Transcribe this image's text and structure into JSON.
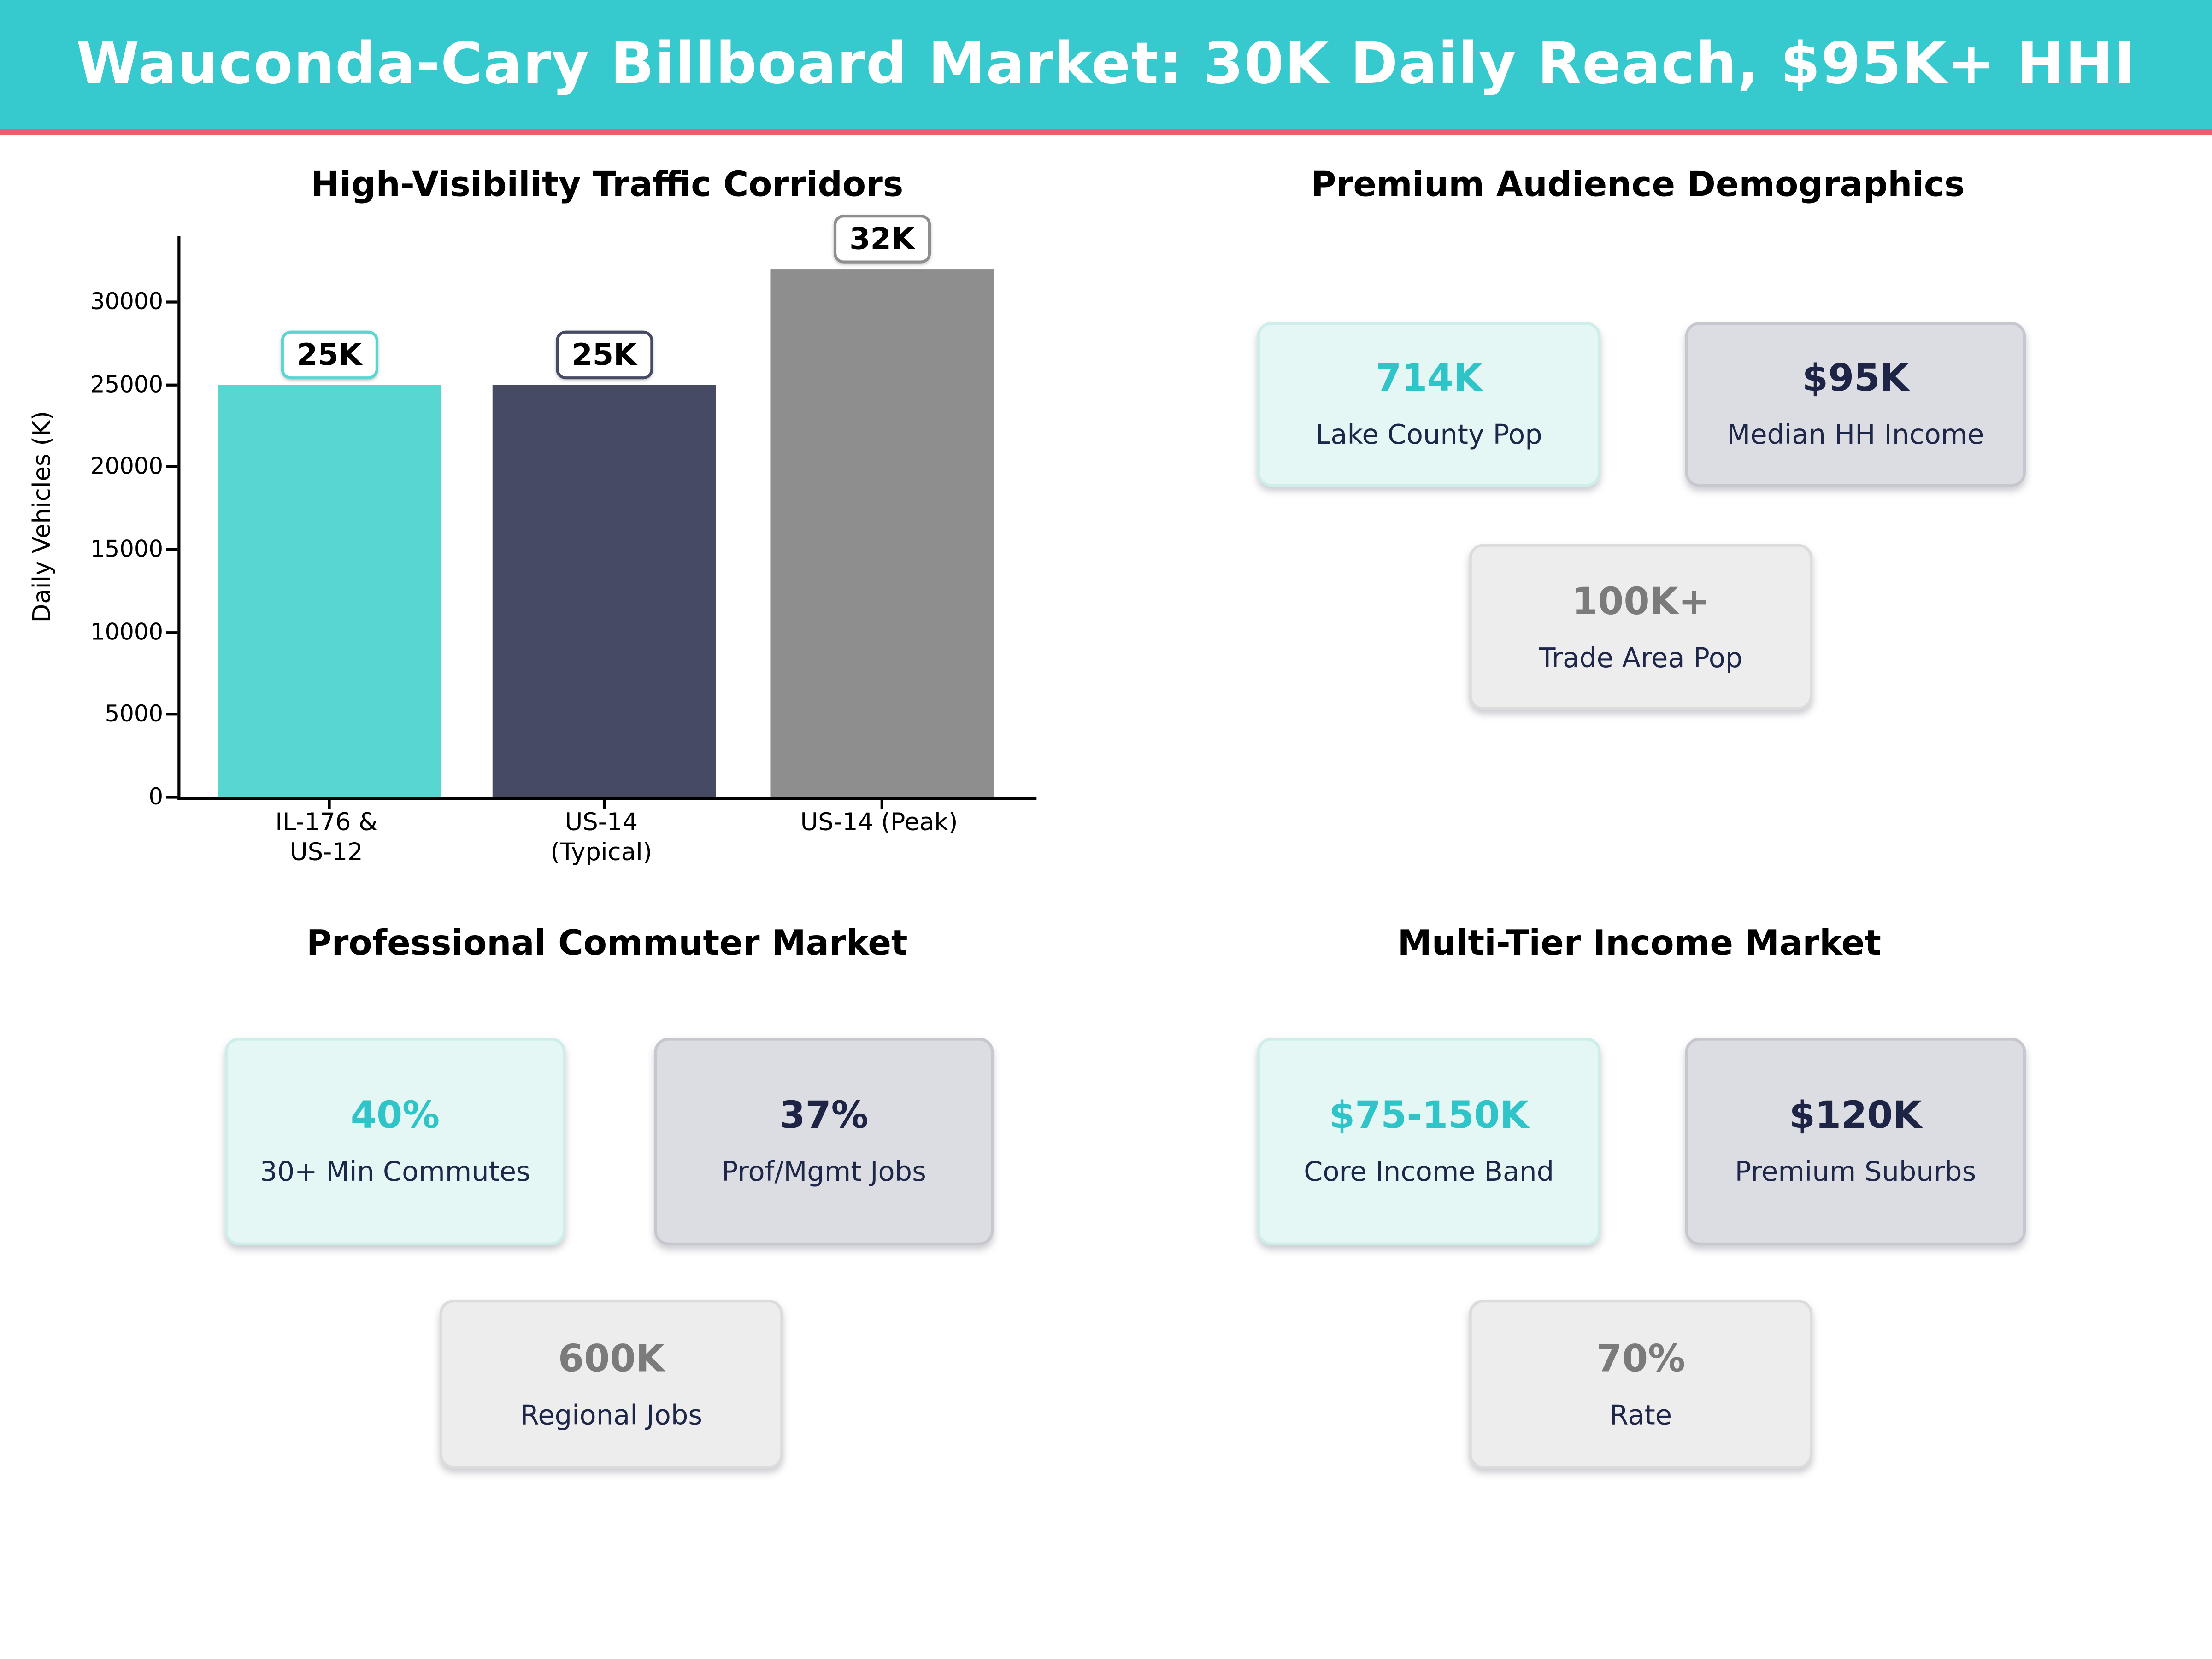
{
  "header": {
    "title": "Wauconda-Cary Billboard Market: 30K Daily Reach, $95K+ HHI",
    "bg_color": "#36c9cd",
    "accent_strip_color": "#ea5d72"
  },
  "chart_data": {
    "type": "bar",
    "title": "High-Visibility Traffic Corridors",
    "categories": [
      "IL-176 &\nUS-12",
      "US-14\n(Typical)",
      "US-14 (Peak)"
    ],
    "values": [
      25000,
      25000,
      32000
    ],
    "bar_labels": [
      "25K",
      "25K",
      "32K"
    ],
    "bar_colors": [
      "#58d6d2",
      "#464a62",
      "#8e8e8e"
    ],
    "xlabel": "",
    "ylabel": "Daily Vehicles (K)",
    "yticks": [
      0,
      5000,
      10000,
      15000,
      20000,
      25000,
      30000
    ],
    "ylim": [
      0,
      34000
    ],
    "grid": false,
    "legend": "none"
  },
  "quadrants": {
    "demographics": {
      "title": "Premium Audience Demographics",
      "cards": [
        {
          "value": "714K",
          "label": "Lake County Pop",
          "variant": "teal"
        },
        {
          "value": "$95K",
          "label": "Median HH Income",
          "variant": "dark"
        },
        {
          "value": "100K+",
          "label": "Trade Area Pop",
          "variant": "gray"
        }
      ]
    },
    "commuter": {
      "title": "Professional Commuter Market",
      "cards": [
        {
          "value": "40%",
          "label": "30+ Min Commutes",
          "variant": "teal"
        },
        {
          "value": "37%",
          "label": "Prof/Mgmt Jobs",
          "variant": "dark"
        },
        {
          "value": "600K",
          "label": "Regional Jobs",
          "variant": "gray"
        }
      ]
    },
    "income": {
      "title": "Multi-Tier Income Market",
      "cards": [
        {
          "value": "$75-150K",
          "label": "Core Income Band",
          "variant": "teal"
        },
        {
          "value": "$120K",
          "label": "Premium Suburbs",
          "variant": "dark"
        },
        {
          "value": "70%",
          "label": "Rate",
          "variant": "gray"
        }
      ]
    }
  }
}
